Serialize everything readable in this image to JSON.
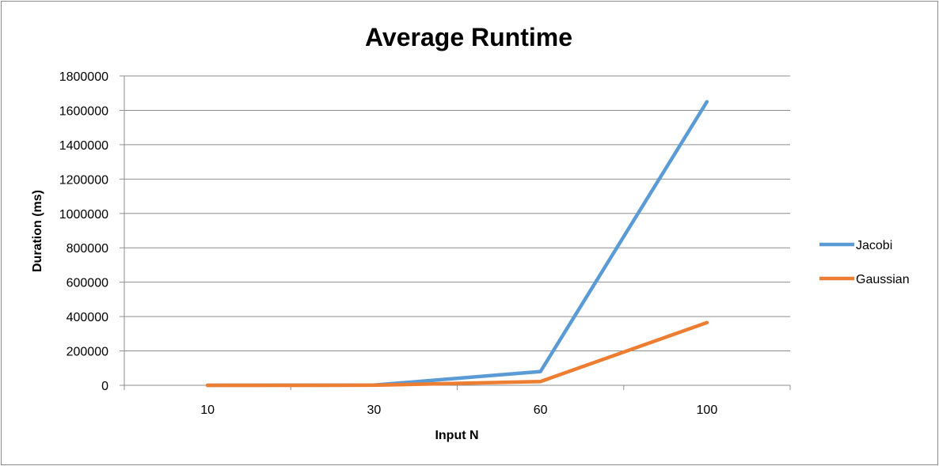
{
  "chart_data": {
    "type": "line",
    "title": "Average Runtime",
    "xlabel": "Input N",
    "ylabel": "Duration (ms)",
    "categories": [
      "10",
      "30",
      "60",
      "100"
    ],
    "ylim": [
      0,
      1800000
    ],
    "yticks": [
      "0",
      "200000",
      "400000",
      "600000",
      "800000",
      "1000000",
      "1200000",
      "1400000",
      "1600000",
      "1800000"
    ],
    "grid": true,
    "legend_position": "right",
    "series": [
      {
        "name": "Jacobi",
        "color": "#5b9bd5",
        "values": [
          0,
          1000,
          80000,
          1650000
        ]
      },
      {
        "name": "Gaussian",
        "color": "#ed7d31",
        "values": [
          0,
          500,
          22000,
          365000
        ]
      }
    ]
  }
}
